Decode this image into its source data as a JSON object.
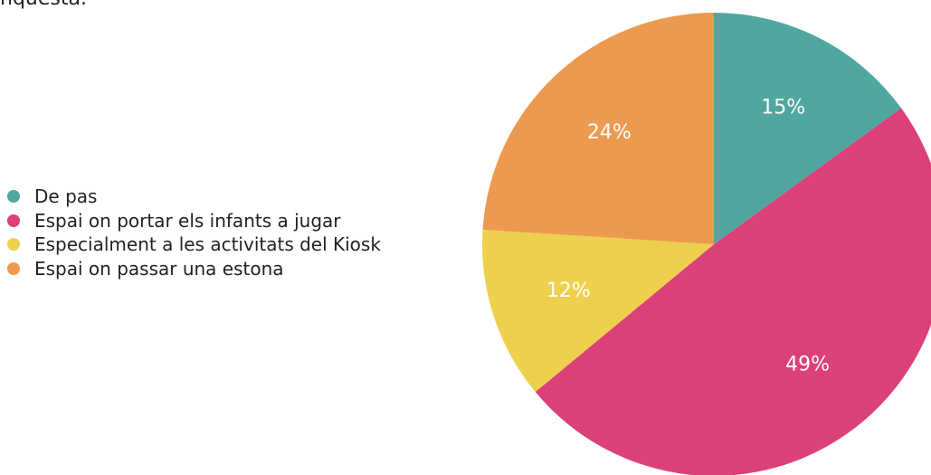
{
  "header": {
    "title_fragment": "nquesta."
  },
  "chart_data": {
    "type": "pie",
    "slices": [
      {
        "name": "De pas",
        "value": 15,
        "label": "15%",
        "color": "#4fa7a0"
      },
      {
        "name": "Espai on portar els infants a jugar",
        "value": 49,
        "label": "49%",
        "color": "#dc4079"
      },
      {
        "name": "Especialment a les activitats del Kiosk",
        "value": 12,
        "label": "12%",
        "color": "#edd04d"
      },
      {
        "name": "Espai on passar una estona",
        "value": 24,
        "label": "24%",
        "color": "#ec9a4f"
      }
    ],
    "legend_position": "left"
  }
}
